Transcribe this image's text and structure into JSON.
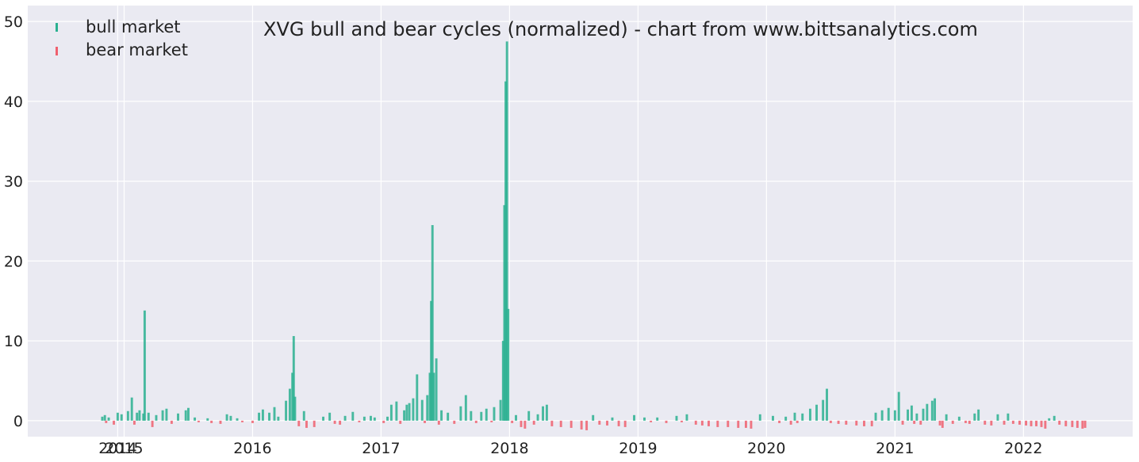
{
  "chart_data": {
    "type": "bar",
    "title": "XVG bull and bear cycles (normalized)  - chart from www.bittsanalytics.com",
    "xlabel": "",
    "ylabel": "",
    "ylim": [
      -2,
      52
    ],
    "yticks": [
      0,
      10,
      20,
      30,
      40,
      50
    ],
    "xlim": [
      2014.25,
      2022.85
    ],
    "xticks": [
      {
        "value": 2014.95,
        "label": "2014"
      },
      {
        "value": 2015.0,
        "label": "2015"
      },
      {
        "value": 2016.0,
        "label": "2016"
      },
      {
        "value": 2017.0,
        "label": "2017"
      },
      {
        "value": 2018.0,
        "label": "2018"
      },
      {
        "value": 2019.0,
        "label": "2019"
      },
      {
        "value": 2020.0,
        "label": "2020"
      },
      {
        "value": 2021.0,
        "label": "2021"
      },
      {
        "value": 2022.0,
        "label": "2022"
      }
    ],
    "grid": true,
    "legend_position": "top-left",
    "colors": {
      "bull": "#2ab090",
      "bear": "#f0606e",
      "background": "#eaeaf2",
      "grid": "#ffffff"
    },
    "series": [
      {
        "name": "bull market",
        "key": "bull",
        "points": [
          [
            2014.83,
            0.5
          ],
          [
            2014.85,
            0.7
          ],
          [
            2014.88,
            0.4
          ],
          [
            2014.95,
            1.0
          ],
          [
            2014.98,
            0.8
          ],
          [
            2015.03,
            1.2
          ],
          [
            2015.06,
            2.9
          ],
          [
            2015.1,
            1.0
          ],
          [
            2015.12,
            1.3
          ],
          [
            2015.15,
            0.9
          ],
          [
            2015.16,
            13.8
          ],
          [
            2015.19,
            1.0
          ],
          [
            2015.25,
            0.7
          ],
          [
            2015.3,
            1.3
          ],
          [
            2015.33,
            1.5
          ],
          [
            2015.42,
            0.9
          ],
          [
            2015.48,
            1.3
          ],
          [
            2015.5,
            1.6
          ],
          [
            2015.55,
            0.4
          ],
          [
            2015.65,
            0.3
          ],
          [
            2015.8,
            0.8
          ],
          [
            2015.83,
            0.6
          ],
          [
            2015.88,
            0.3
          ],
          [
            2016.05,
            1.0
          ],
          [
            2016.08,
            1.4
          ],
          [
            2016.13,
            1.0
          ],
          [
            2016.17,
            1.7
          ],
          [
            2016.2,
            0.5
          ],
          [
            2016.26,
            2.5
          ],
          [
            2016.29,
            4.0
          ],
          [
            2016.31,
            6.0
          ],
          [
            2016.32,
            10.6
          ],
          [
            2016.33,
            3.0
          ],
          [
            2016.4,
            1.2
          ],
          [
            2016.55,
            0.5
          ],
          [
            2016.6,
            1.0
          ],
          [
            2016.72,
            0.6
          ],
          [
            2016.78,
            1.1
          ],
          [
            2016.87,
            0.5
          ],
          [
            2016.92,
            0.6
          ],
          [
            2016.95,
            0.4
          ],
          [
            2017.05,
            0.5
          ],
          [
            2017.08,
            2.0
          ],
          [
            2017.12,
            2.4
          ],
          [
            2017.18,
            1.3
          ],
          [
            2017.2,
            2.0
          ],
          [
            2017.22,
            2.2
          ],
          [
            2017.25,
            2.8
          ],
          [
            2017.28,
            5.8
          ],
          [
            2017.32,
            2.6
          ],
          [
            2017.36,
            3.2
          ],
          [
            2017.38,
            6.0
          ],
          [
            2017.39,
            15.0
          ],
          [
            2017.4,
            24.5
          ],
          [
            2017.41,
            6.0
          ],
          [
            2017.43,
            7.8
          ],
          [
            2017.47,
            1.3
          ],
          [
            2017.52,
            1.0
          ],
          [
            2017.62,
            1.8
          ],
          [
            2017.66,
            3.2
          ],
          [
            2017.7,
            1.2
          ],
          [
            2017.78,
            1.1
          ],
          [
            2017.82,
            1.5
          ],
          [
            2017.88,
            1.7
          ],
          [
            2017.93,
            2.6
          ],
          [
            2017.95,
            10.0
          ],
          [
            2017.96,
            27.0
          ],
          [
            2017.97,
            42.5
          ],
          [
            2017.98,
            47.5
          ],
          [
            2017.99,
            14.0
          ],
          [
            2018.05,
            0.7
          ],
          [
            2018.15,
            1.2
          ],
          [
            2018.22,
            0.8
          ],
          [
            2018.26,
            1.8
          ],
          [
            2018.29,
            2.0
          ],
          [
            2018.65,
            0.7
          ],
          [
            2018.8,
            0.4
          ],
          [
            2018.97,
            0.7
          ],
          [
            2019.05,
            0.4
          ],
          [
            2019.15,
            0.4
          ],
          [
            2019.3,
            0.6
          ],
          [
            2019.38,
            0.8
          ],
          [
            2019.95,
            0.8
          ],
          [
            2020.05,
            0.6
          ],
          [
            2020.15,
            0.5
          ],
          [
            2020.22,
            1.0
          ],
          [
            2020.28,
            0.9
          ],
          [
            2020.34,
            1.5
          ],
          [
            2020.39,
            2.0
          ],
          [
            2020.44,
            2.6
          ],
          [
            2020.47,
            4.0
          ],
          [
            2020.85,
            1.0
          ],
          [
            2020.9,
            1.3
          ],
          [
            2020.95,
            1.6
          ],
          [
            2021.0,
            1.3
          ],
          [
            2021.03,
            3.6
          ],
          [
            2021.1,
            1.4
          ],
          [
            2021.13,
            1.9
          ],
          [
            2021.17,
            0.9
          ],
          [
            2021.22,
            1.5
          ],
          [
            2021.25,
            2.1
          ],
          [
            2021.29,
            2.5
          ],
          [
            2021.31,
            2.8
          ],
          [
            2021.4,
            0.8
          ],
          [
            2021.5,
            0.5
          ],
          [
            2021.62,
            0.9
          ],
          [
            2021.65,
            1.4
          ],
          [
            2021.8,
            0.8
          ],
          [
            2021.88,
            0.9
          ],
          [
            2022.2,
            0.3
          ],
          [
            2022.24,
            0.6
          ]
        ]
      },
      {
        "name": "bear market",
        "key": "bear",
        "points": [
          [
            2014.86,
            -0.3
          ],
          [
            2014.92,
            -0.5
          ],
          [
            2015.08,
            -0.5
          ],
          [
            2015.22,
            -0.8
          ],
          [
            2015.37,
            -0.4
          ],
          [
            2015.58,
            -0.2
          ],
          [
            2015.68,
            -0.3
          ],
          [
            2015.75,
            -0.4
          ],
          [
            2015.92,
            -0.2
          ],
          [
            2016.0,
            -0.3
          ],
          [
            2016.36,
            -0.7
          ],
          [
            2016.42,
            -0.9
          ],
          [
            2016.48,
            -0.8
          ],
          [
            2016.64,
            -0.4
          ],
          [
            2016.68,
            -0.5
          ],
          [
            2016.83,
            -0.2
          ],
          [
            2017.02,
            -0.3
          ],
          [
            2017.15,
            -0.4
          ],
          [
            2017.34,
            -0.3
          ],
          [
            2017.45,
            -0.5
          ],
          [
            2017.57,
            -0.4
          ],
          [
            2017.74,
            -0.3
          ],
          [
            2017.86,
            -0.2
          ],
          [
            2018.02,
            -0.3
          ],
          [
            2018.09,
            -0.8
          ],
          [
            2018.12,
            -1.0
          ],
          [
            2018.19,
            -0.5
          ],
          [
            2018.33,
            -0.7
          ],
          [
            2018.4,
            -0.8
          ],
          [
            2018.48,
            -0.9
          ],
          [
            2018.56,
            -1.1
          ],
          [
            2018.6,
            -1.2
          ],
          [
            2018.7,
            -0.5
          ],
          [
            2018.76,
            -0.6
          ],
          [
            2018.85,
            -0.7
          ],
          [
            2018.9,
            -0.8
          ],
          [
            2019.1,
            -0.2
          ],
          [
            2019.22,
            -0.3
          ],
          [
            2019.34,
            -0.2
          ],
          [
            2019.45,
            -0.5
          ],
          [
            2019.5,
            -0.6
          ],
          [
            2019.55,
            -0.7
          ],
          [
            2019.62,
            -0.8
          ],
          [
            2019.7,
            -0.8
          ],
          [
            2019.78,
            -0.9
          ],
          [
            2019.84,
            -0.9
          ],
          [
            2019.88,
            -1.0
          ],
          [
            2020.1,
            -0.3
          ],
          [
            2020.19,
            -0.5
          ],
          [
            2020.24,
            -0.3
          ],
          [
            2020.5,
            -0.3
          ],
          [
            2020.56,
            -0.4
          ],
          [
            2020.62,
            -0.5
          ],
          [
            2020.7,
            -0.6
          ],
          [
            2020.76,
            -0.7
          ],
          [
            2020.82,
            -0.7
          ],
          [
            2021.06,
            -0.5
          ],
          [
            2021.15,
            -0.4
          ],
          [
            2021.2,
            -0.5
          ],
          [
            2021.35,
            -0.6
          ],
          [
            2021.37,
            -0.9
          ],
          [
            2021.45,
            -0.4
          ],
          [
            2021.55,
            -0.3
          ],
          [
            2021.58,
            -0.4
          ],
          [
            2021.7,
            -0.5
          ],
          [
            2021.75,
            -0.6
          ],
          [
            2021.85,
            -0.5
          ],
          [
            2021.92,
            -0.4
          ],
          [
            2021.97,
            -0.5
          ],
          [
            2022.02,
            -0.6
          ],
          [
            2022.06,
            -0.7
          ],
          [
            2022.1,
            -0.7
          ],
          [
            2022.14,
            -0.8
          ],
          [
            2022.17,
            -1.0
          ],
          [
            2022.28,
            -0.5
          ],
          [
            2022.33,
            -0.7
          ],
          [
            2022.38,
            -0.8
          ],
          [
            2022.42,
            -0.9
          ],
          [
            2022.46,
            -1.0
          ],
          [
            2022.48,
            -0.9
          ]
        ]
      }
    ]
  }
}
